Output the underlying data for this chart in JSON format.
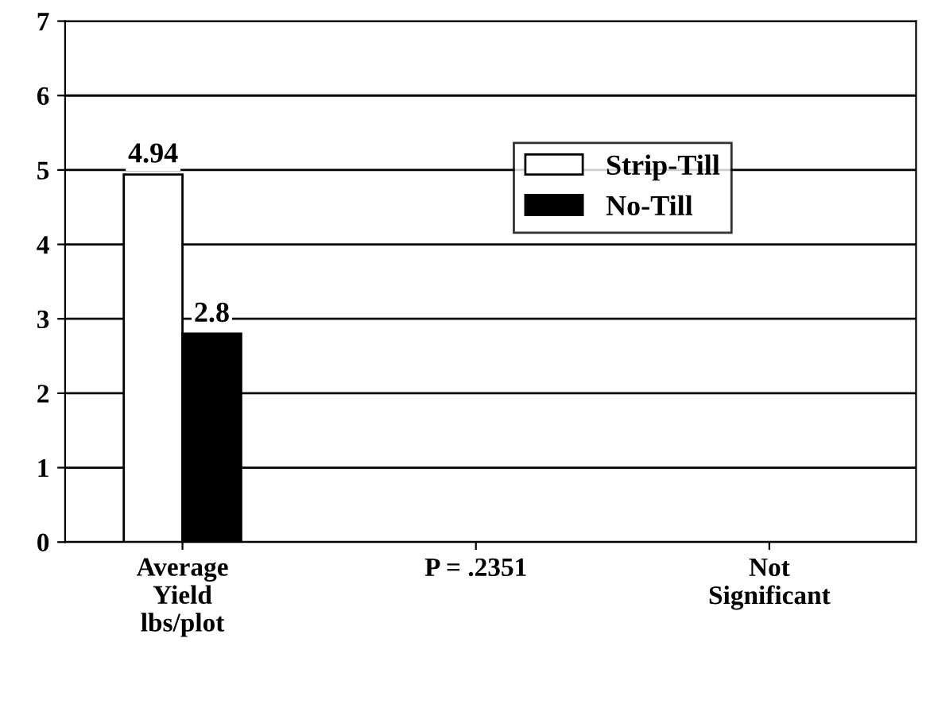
{
  "chart_data": {
    "type": "bar",
    "categories": [
      "Average\nYield\nlbs/plot",
      "P = .2351",
      "Not\nSignificant"
    ],
    "series": [
      {
        "name": "Strip-Till",
        "color": "#ffffff",
        "values": [
          4.94,
          null,
          null
        ]
      },
      {
        "name": "No-Till",
        "color": "#000000",
        "values": [
          2.8,
          null,
          null
        ]
      }
    ],
    "ylim": [
      0,
      7
    ],
    "yticks": [
      0,
      1,
      2,
      3,
      4,
      5,
      6,
      7
    ],
    "grid": "y",
    "legend": "right",
    "data_labels": true
  }
}
